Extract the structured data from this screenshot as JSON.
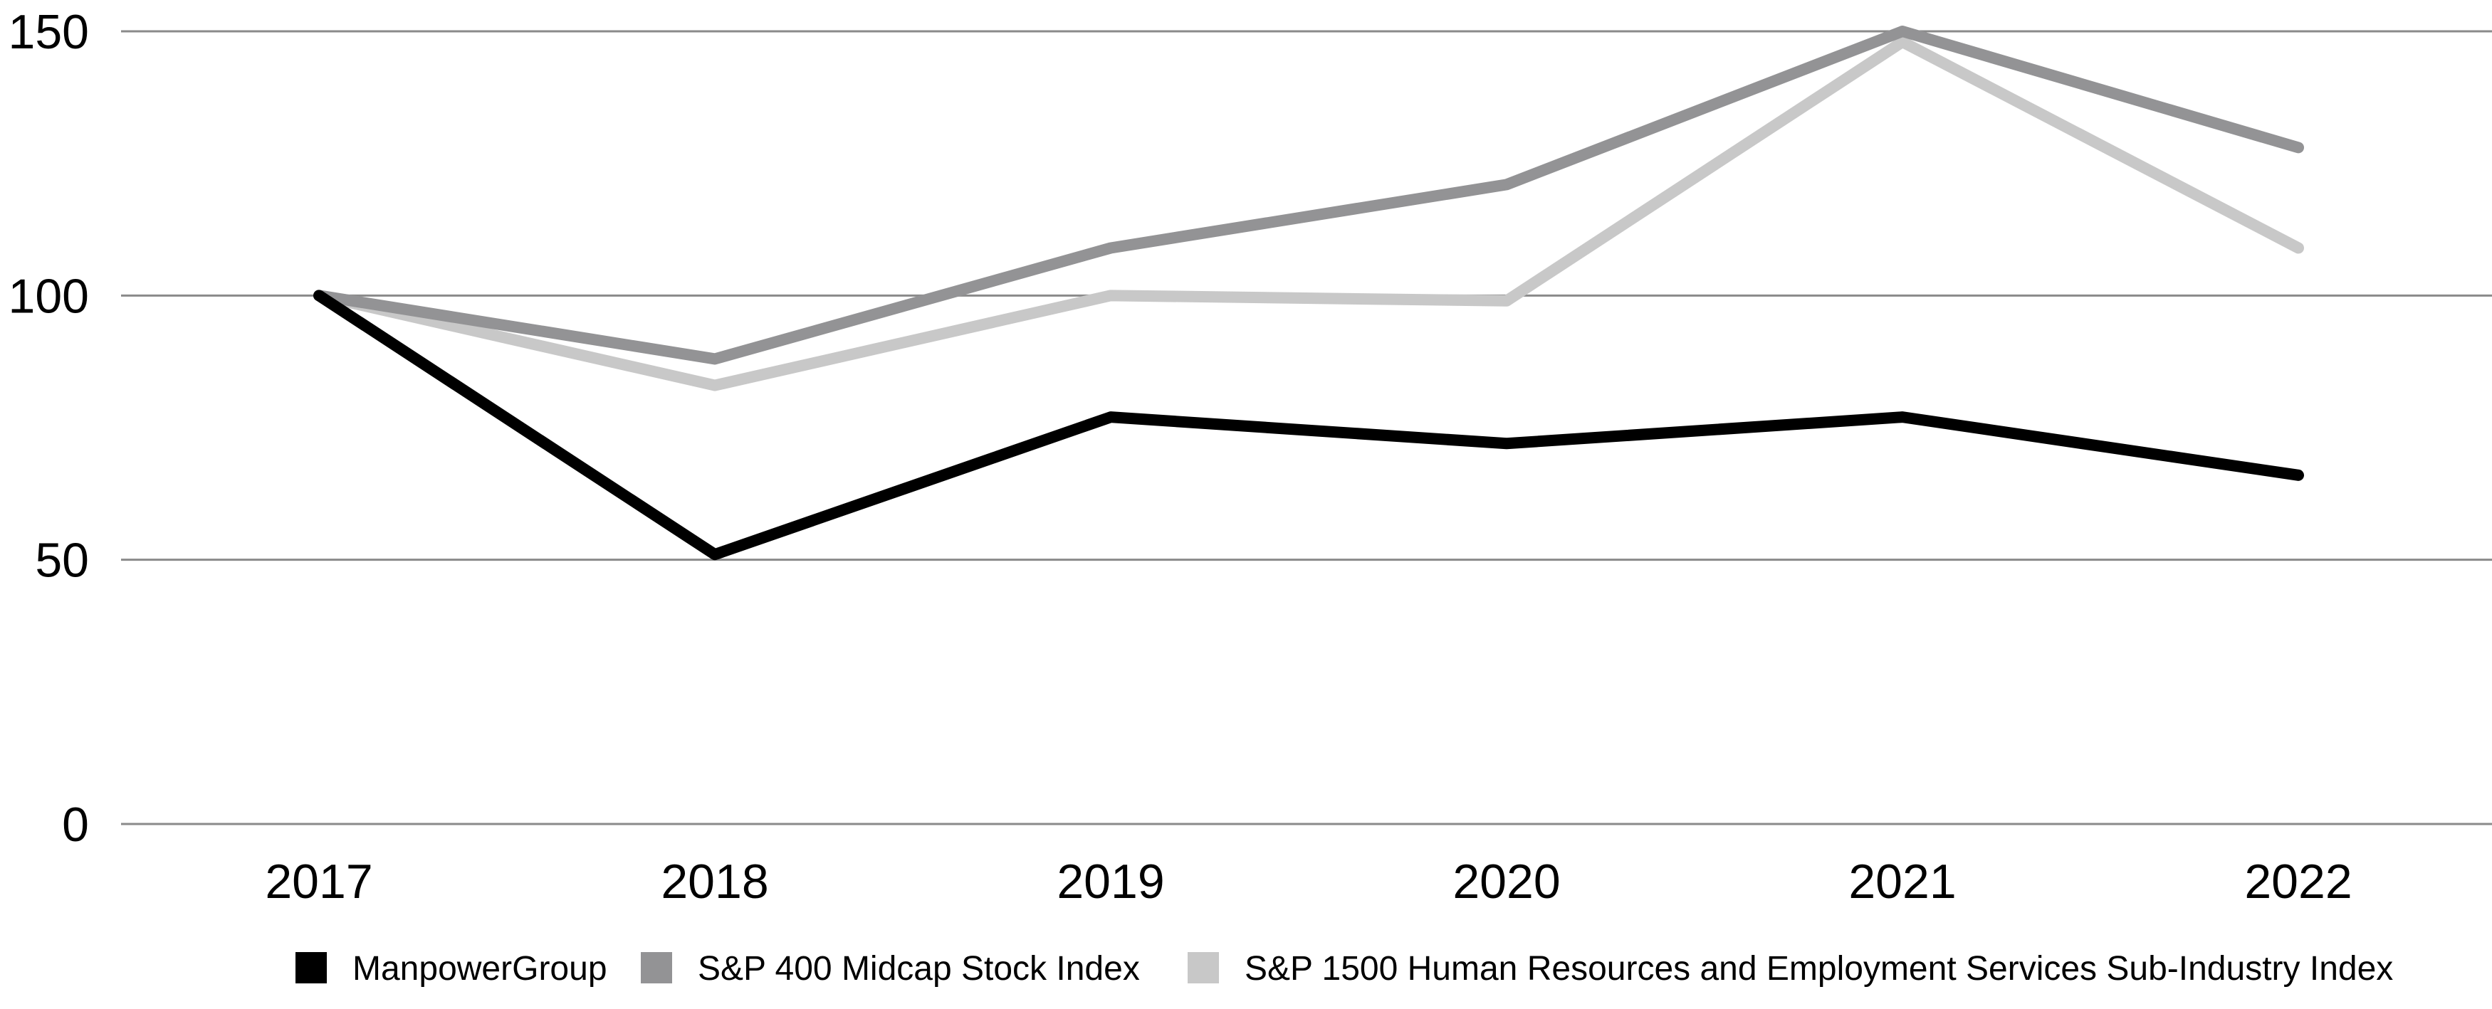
{
  "chart_data": {
    "type": "line",
    "title": "",
    "xlabel": "",
    "ylabel": "",
    "categories": [
      "2017",
      "2018",
      "2019",
      "2020",
      "2021",
      "2022"
    ],
    "ylim": [
      0,
      150
    ],
    "yticks": [
      0,
      50,
      100,
      150
    ],
    "grid": true,
    "legend_position": "bottom",
    "series": [
      {
        "name": "ManpowerGroup",
        "color": "#000000",
        "values": [
          100,
          51,
          77,
          72,
          77,
          66
        ]
      },
      {
        "name": "S&P 400 Midcap Stock Index",
        "color": "#939395",
        "values": [
          100,
          88,
          109,
          121,
          150,
          128
        ]
      },
      {
        "name": "S&P 1500 Human Resources and Employment Services Sub-Industry Index",
        "color": "#c8c8c8",
        "values": [
          100,
          83,
          100,
          99,
          148,
          109
        ]
      }
    ]
  }
}
